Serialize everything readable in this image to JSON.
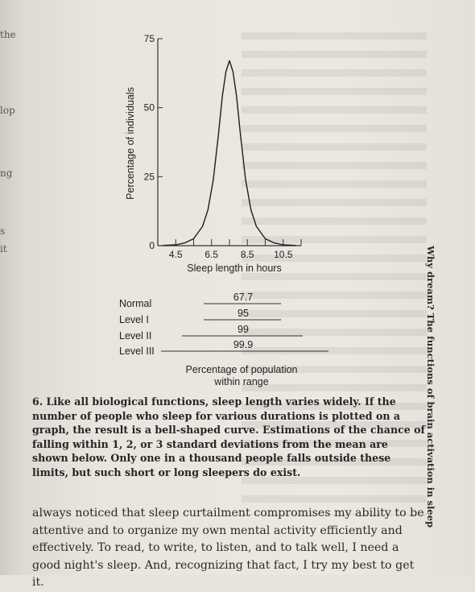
{
  "edge_fragments": [
    "the",
    "lop",
    "ng",
    "s",
    "it"
  ],
  "running_head": "Why dream? The functions of brain activation in sleep",
  "chart_data": [
    {
      "type": "line",
      "description_key": "sleep-length distribution",
      "xlabel": "Sleep length in hours",
      "ylabel": "Percentage of individuals",
      "xticks": [
        "4.5",
        "6.5",
        "8.5",
        "10.5"
      ],
      "yticks": [
        "0",
        "25",
        "50",
        "75"
      ],
      "xlim": [
        3.5,
        11.5
      ],
      "ylim": [
        0,
        75
      ],
      "x": [
        3.8,
        4.5,
        5.0,
        5.5,
        6.0,
        6.3,
        6.6,
        6.9,
        7.1,
        7.3,
        7.5,
        7.7,
        7.9,
        8.1,
        8.4,
        8.7,
        9.0,
        9.5,
        10.0,
        10.5,
        11.2
      ],
      "y": [
        0.1,
        0.3,
        1,
        2.5,
        7,
        13,
        24,
        41,
        54,
        63,
        67,
        63,
        54,
        41,
        24,
        13,
        7,
        2.5,
        1,
        0.3,
        0.1
      ]
    },
    {
      "type": "table",
      "rows": [
        {
          "label": "Normal",
          "value": "67.7"
        },
        {
          "label": "Level I",
          "value": "95"
        },
        {
          "label": "Level II",
          "value": "99"
        },
        {
          "label": "Level III",
          "value": "99.9"
        }
      ],
      "xlabel_line1": "Percentage of population",
      "xlabel_line2": "within range"
    }
  ],
  "caption": "6. Like all biological functions, sleep length varies widely. If the number of people who sleep for various durations is plotted on a graph, the result is a bell-shaped curve. Estimations of the chance of falling within 1, 2, or 3 standard deviations from the mean are shown below. Only one in a thousand people falls outside these limits, but such short or long sleepers do exist.",
  "body": "always noticed that sleep curtailment compromises my ability to be attentive and to organize my own mental activity efficiently and effectively. To read, to write, to listen, and to talk well, I need a good night's sleep. And, recognizing that fact, I try my best to get it."
}
